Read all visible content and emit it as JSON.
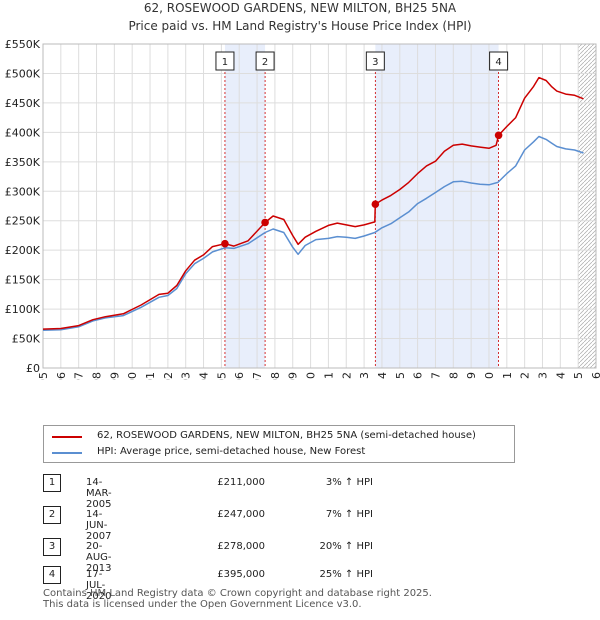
{
  "chart_data": {
    "type": "line",
    "title": "62, ROSEWOOD GARDENS, NEW MILTON, BH25 5NA",
    "subtitle": "Price paid vs. HM Land Registry's House Price Index (HPI)",
    "xlabel": "",
    "ylabel": "",
    "xlim": [
      1995,
      2026
    ],
    "ylim": [
      0,
      550000
    ],
    "x_ticks": [
      1995,
      1996,
      1997,
      1998,
      1999,
      2000,
      2001,
      2002,
      2003,
      2004,
      2005,
      2006,
      2007,
      2008,
      2009,
      2010,
      2011,
      2012,
      2013,
      2014,
      2015,
      2016,
      2017,
      2018,
      2019,
      2020,
      2021,
      2022,
      2023,
      2024,
      2025,
      2026
    ],
    "y_ticks": [
      {
        "value": 0,
        "label": "£0"
      },
      {
        "value": 50000,
        "label": "£50K"
      },
      {
        "value": 100000,
        "label": "£100K"
      },
      {
        "value": 150000,
        "label": "£150K"
      },
      {
        "value": 200000,
        "label": "£200K"
      },
      {
        "value": 250000,
        "label": "£250K"
      },
      {
        "value": 300000,
        "label": "£300K"
      },
      {
        "value": 350000,
        "label": "£350K"
      },
      {
        "value": 400000,
        "label": "£400K"
      },
      {
        "value": 450000,
        "label": "£450K"
      },
      {
        "value": 500000,
        "label": "£500K"
      },
      {
        "value": 550000,
        "label": "£550K"
      }
    ],
    "grid": true,
    "shaded_ranges": [
      [
        2005.2,
        2007.45
      ],
      [
        2013.63,
        2020.54
      ]
    ],
    "future_hatch_from": 2025.0,
    "series": [
      {
        "name": "62, ROSEWOOD GARDENS, NEW MILTON, BH25 5NA (semi-detached house)",
        "color": "#cc0000",
        "points": [
          [
            1995.0,
            66000
          ],
          [
            1996.0,
            67000
          ],
          [
            1997.0,
            72000
          ],
          [
            1997.8,
            82000
          ],
          [
            1998.5,
            87000
          ],
          [
            1999.5,
            92000
          ],
          [
            2000.5,
            107000
          ],
          [
            2001.5,
            125000
          ],
          [
            2002.0,
            127000
          ],
          [
            2002.5,
            140000
          ],
          [
            2003.0,
            165000
          ],
          [
            2003.5,
            183000
          ],
          [
            2004.0,
            192000
          ],
          [
            2004.5,
            206000
          ],
          [
            2005.2,
            211000
          ],
          [
            2005.7,
            207000
          ],
          [
            2006.5,
            216000
          ],
          [
            2007.45,
            247000
          ],
          [
            2007.9,
            258000
          ],
          [
            2008.5,
            252000
          ],
          [
            2009.0,
            225000
          ],
          [
            2009.3,
            210000
          ],
          [
            2009.7,
            222000
          ],
          [
            2010.3,
            232000
          ],
          [
            2011.0,
            242000
          ],
          [
            2011.5,
            246000
          ],
          [
            2012.0,
            243000
          ],
          [
            2012.5,
            240000
          ],
          [
            2013.0,
            243000
          ],
          [
            2013.6,
            248000
          ],
          [
            2013.63,
            278000
          ],
          [
            2014.0,
            285000
          ],
          [
            2014.5,
            293000
          ],
          [
            2015.0,
            303000
          ],
          [
            2015.5,
            315000
          ],
          [
            2016.0,
            330000
          ],
          [
            2016.5,
            343000
          ],
          [
            2017.0,
            351000
          ],
          [
            2017.5,
            368000
          ],
          [
            2018.0,
            378000
          ],
          [
            2018.5,
            380000
          ],
          [
            2019.0,
            377000
          ],
          [
            2019.5,
            375000
          ],
          [
            2020.0,
            373000
          ],
          [
            2020.4,
            378000
          ],
          [
            2020.54,
            395000
          ],
          [
            2021.0,
            410000
          ],
          [
            2021.5,
            425000
          ],
          [
            2022.0,
            458000
          ],
          [
            2022.5,
            478000
          ],
          [
            2022.8,
            493000
          ],
          [
            2023.2,
            488000
          ],
          [
            2023.5,
            478000
          ],
          [
            2023.8,
            470000
          ],
          [
            2024.3,
            465000
          ],
          [
            2024.8,
            463000
          ],
          [
            2025.3,
            457000
          ]
        ]
      },
      {
        "name": "HPI: Average price, semi-detached house, New Forest",
        "color": "#5b8fd1",
        "points": [
          [
            1995.0,
            64000
          ],
          [
            1996.0,
            65000
          ],
          [
            1997.0,
            70000
          ],
          [
            1997.8,
            80000
          ],
          [
            1998.5,
            85000
          ],
          [
            1999.5,
            89000
          ],
          [
            2000.5,
            103000
          ],
          [
            2001.5,
            120000
          ],
          [
            2002.0,
            123000
          ],
          [
            2002.5,
            135000
          ],
          [
            2003.0,
            160000
          ],
          [
            2003.5,
            177000
          ],
          [
            2004.0,
            186000
          ],
          [
            2004.5,
            197000
          ],
          [
            2005.2,
            204000
          ],
          [
            2005.7,
            203000
          ],
          [
            2006.5,
            211000
          ],
          [
            2007.45,
            230000
          ],
          [
            2007.9,
            236000
          ],
          [
            2008.5,
            230000
          ],
          [
            2009.0,
            205000
          ],
          [
            2009.3,
            193000
          ],
          [
            2009.7,
            208000
          ],
          [
            2010.3,
            218000
          ],
          [
            2011.0,
            220000
          ],
          [
            2011.5,
            223000
          ],
          [
            2012.0,
            222000
          ],
          [
            2012.5,
            220000
          ],
          [
            2013.0,
            224000
          ],
          [
            2013.6,
            230000
          ],
          [
            2014.0,
            238000
          ],
          [
            2014.5,
            245000
          ],
          [
            2015.0,
            255000
          ],
          [
            2015.5,
            265000
          ],
          [
            2016.0,
            279000
          ],
          [
            2016.5,
            288000
          ],
          [
            2017.0,
            298000
          ],
          [
            2017.5,
            308000
          ],
          [
            2018.0,
            316000
          ],
          [
            2018.5,
            317000
          ],
          [
            2019.0,
            314000
          ],
          [
            2019.5,
            312000
          ],
          [
            2020.0,
            311000
          ],
          [
            2020.5,
            315000
          ],
          [
            2021.0,
            330000
          ],
          [
            2021.5,
            343000
          ],
          [
            2022.0,
            370000
          ],
          [
            2022.5,
            384000
          ],
          [
            2022.8,
            393000
          ],
          [
            2023.2,
            388000
          ],
          [
            2023.5,
            382000
          ],
          [
            2023.8,
            376000
          ],
          [
            2024.3,
            372000
          ],
          [
            2024.8,
            370000
          ],
          [
            2025.3,
            365000
          ]
        ]
      }
    ],
    "sale_markers": [
      {
        "label": "1",
        "x": 2005.2,
        "y": 211000
      },
      {
        "label": "2",
        "x": 2007.45,
        "y": 247000
      },
      {
        "label": "3",
        "x": 2013.63,
        "y": 278000
      },
      {
        "label": "4",
        "x": 2020.54,
        "y": 395000
      }
    ]
  },
  "legend": {
    "items": [
      {
        "label": "62, ROSEWOOD GARDENS, NEW MILTON, BH25 5NA (semi-detached house)",
        "color": "#cc0000"
      },
      {
        "label": "HPI: Average price, semi-detached house, New Forest",
        "color": "#5b8fd1"
      }
    ]
  },
  "transactions": [
    {
      "num": "1",
      "date": "14-MAR-2005",
      "price": "£211,000",
      "hpi": "3% ↑ HPI"
    },
    {
      "num": "2",
      "date": "14-JUN-2007",
      "price": "£247,000",
      "hpi": "7% ↑ HPI"
    },
    {
      "num": "3",
      "date": "20-AUG-2013",
      "price": "£278,000",
      "hpi": "20% ↑ HPI"
    },
    {
      "num": "4",
      "date": "17-JUL-2020",
      "price": "£395,000",
      "hpi": "25% ↑ HPI"
    }
  ],
  "footer": {
    "line1": "Contains HM Land Registry data © Crown copyright and database right 2025.",
    "line2": "This data is licensed under the Open Government Licence v3.0."
  }
}
